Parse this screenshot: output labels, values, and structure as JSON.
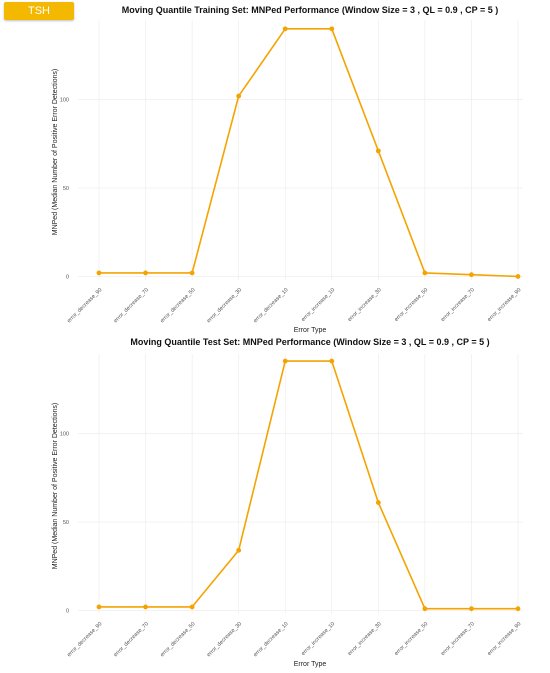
{
  "badge": {
    "label": "TSH"
  },
  "colors": {
    "line": "#F5A300",
    "badge": "#F5B800"
  },
  "chart_data": [
    {
      "type": "line",
      "title": "Moving Quantile Training Set: MNPed Performance (Window Size = 3 , QL = 0.9 , CP = 5 )",
      "xlabel": "Error Type",
      "ylabel": "MNPed (Median Number of Positive Error Detections)",
      "categories": [
        "error_decrease_90",
        "error_decrease_70",
        "error_decrease_50",
        "error_decrease_30",
        "error_decrease_10",
        "error_increase_10",
        "error_increase_30",
        "error_increase_50",
        "error_increase_70",
        "error_increase_90"
      ],
      "values": [
        2,
        2,
        2,
        102,
        140,
        140,
        71,
        2,
        1,
        0
      ],
      "yticks": [
        0,
        50,
        100
      ],
      "ylim": [
        -2,
        145
      ],
      "grid": true,
      "legend": "none"
    },
    {
      "type": "line",
      "title": "Moving Quantile Test Set: MNPed Performance (Window Size = 3 , QL = 0.9 , CP = 5 )",
      "xlabel": "Error Type",
      "ylabel": "MNPed (Median Number of Positive Error Detections)",
      "categories": [
        "error_decrease_90",
        "error_decrease_70",
        "error_decrease_50",
        "error_decrease_30",
        "error_decrease_10",
        "error_increase_10",
        "error_increase_30",
        "error_increase_50",
        "error_increase_70",
        "error_increase_90"
      ],
      "values": [
        2,
        2,
        2,
        34,
        141,
        141,
        61,
        1,
        1,
        1
      ],
      "yticks": [
        0,
        50,
        100
      ],
      "ylim": [
        -2,
        145
      ],
      "grid": true,
      "legend": "none"
    }
  ]
}
